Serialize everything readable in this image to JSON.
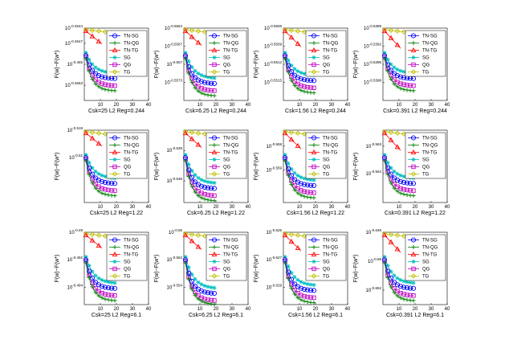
{
  "chart_data": {
    "type": "line",
    "grid": false,
    "legend_position": "top-right",
    "x_ticks": [
      10,
      20,
      30,
      40
    ],
    "xlim": [
      0,
      40
    ],
    "legend": [
      {
        "name": "TN-SG",
        "color": "#0000ff",
        "marker": "circle"
      },
      {
        "name": "TN-QG",
        "color": "#008000",
        "marker": "plus"
      },
      {
        "name": "TN-TG",
        "color": "#ff0000",
        "marker": "triangle"
      },
      {
        "name": "SG",
        "color": "#00bfbf",
        "marker": "star"
      },
      {
        "name": "QG",
        "color": "#bf00bf",
        "marker": "square"
      },
      {
        "name": "TG",
        "color": "#bfbf00",
        "marker": "diamond"
      }
    ],
    "panels": [
      {
        "xlabel": "Csk=25 L2 Reg=0.244",
        "ylabel": "F(w)−F(w*)",
        "y_ticks": [
          {
            "label": "10^-0.4644",
            "v": 1.0
          },
          {
            "label": "10^-0.4647",
            "v": 0.79
          },
          {
            "label": "10^-0.465",
            "v": 0.5
          },
          {
            "label": "10^-0.4653",
            "v": 0.21
          }
        ]
      },
      {
        "xlabel": "Csk=6.25 L2 Reg=0.244",
        "ylabel": "F(w)−F(w*)",
        "y_ticks": [
          {
            "label": "10^-0.5564",
            "v": 1.0
          },
          {
            "label": "10^-0.5567",
            "v": 0.75
          },
          {
            "label": "10^-0.557",
            "v": 0.5
          },
          {
            "label": "10^-0.5573",
            "v": 0.25
          }
        ]
      },
      {
        "xlabel": "Csk=1.56 L2 Reg=0.244",
        "ylabel": "F(w)−F(w*)",
        "y_ticks": [
          {
            "label": "10^-0.5506",
            "v": 1.0
          },
          {
            "label": "10^-0.5509",
            "v": 0.75
          },
          {
            "label": "10^-0.5512",
            "v": 0.5
          },
          {
            "label": "10^-0.5515",
            "v": 0.25
          }
        ]
      },
      {
        "xlabel": "Csk=0.391 L2 Reg=0.244",
        "ylabel": "F(w)−F(w*)",
        "y_ticks": [
          {
            "label": "10^-0.5389",
            "v": 1.0
          },
          {
            "label": "10^-0.5392",
            "v": 0.75
          },
          {
            "label": "10^-0.5395",
            "v": 0.5
          },
          {
            "label": "10^-0.5398",
            "v": 0.25
          }
        ]
      },
      {
        "xlabel": "Csk=25 L2 Reg=1.22",
        "ylabel": "F(w)−F(w*)",
        "y_ticks": [
          {
            "label": "10^-0.519",
            "v": 1.0
          },
          {
            "label": "10^-0.52",
            "v": 0.62
          }
        ]
      },
      {
        "xlabel": "Csk=6.25 L2 Reg=1.22",
        "ylabel": "F(w)−F(w*)",
        "y_ticks": [
          {
            "label": "10^-0.535",
            "v": 0.72
          },
          {
            "label": "10^-0.536",
            "v": 0.3
          }
        ]
      },
      {
        "xlabel": "Csk=1.56 L2 Reg=1.22",
        "ylabel": "F(w)−F(w*)",
        "y_ticks": [
          {
            "label": "10^-0.558",
            "v": 0.78
          },
          {
            "label": "10^-0.559",
            "v": 0.45
          }
        ]
      },
      {
        "xlabel": "Csk=0.391 L2 Reg=1.22",
        "ylabel": "F(w)−F(w*)",
        "y_ticks": [
          {
            "label": "10^-0.563",
            "v": 0.78
          },
          {
            "label": "10^-0.564",
            "v": 0.4
          }
        ]
      },
      {
        "xlabel": "Csk=25 L2 Reg=6.1",
        "ylabel": "F(w)−F(w*)",
        "y_ticks": [
          {
            "label": "10^-0.49",
            "v": 1.0
          },
          {
            "label": "10^-0.492",
            "v": 0.62
          },
          {
            "label": "10^-0.494",
            "v": 0.24
          }
        ]
      },
      {
        "xlabel": "Csk=6.25 L2 Reg=6.1",
        "ylabel": "F(w)−F(w*)",
        "y_ticks": [
          {
            "label": "10^-0.55",
            "v": 1.0
          },
          {
            "label": "10^-0.552",
            "v": 0.62
          },
          {
            "label": "10^-0.554",
            "v": 0.24
          }
        ]
      },
      {
        "xlabel": "Csk=1.56 L2 Reg=6.1",
        "ylabel": "F(w)−F(w*)",
        "y_ticks": [
          {
            "label": "10^-0.625",
            "v": 1.0
          },
          {
            "label": "10^-0.627",
            "v": 0.62
          },
          {
            "label": "10^-0.629",
            "v": 0.24
          }
        ]
      },
      {
        "xlabel": "Csk=0.391 L2 Reg=6.1",
        "ylabel": "F(w)−F(w*)",
        "y_ticks": [
          {
            "label": "10^-0.648",
            "v": 1.0
          },
          {
            "label": "10^-0.65",
            "v": 0.6
          },
          {
            "label": "10^-0.652",
            "v": 0.2
          }
        ]
      }
    ]
  }
}
